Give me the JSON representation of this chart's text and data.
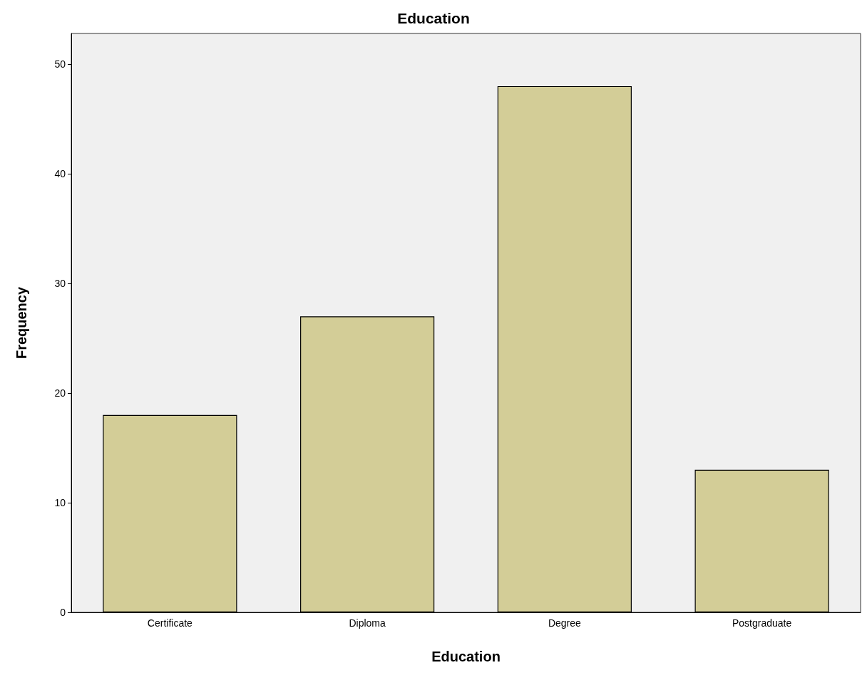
{
  "chart_data": {
    "type": "bar",
    "title": "Education",
    "xlabel": "Education",
    "ylabel": "Frequency",
    "categories": [
      "Certificate",
      "Diploma",
      "Degree",
      "Postgraduate"
    ],
    "values": [
      18,
      27,
      48,
      13
    ],
    "color": "#d3cd97",
    "ylim": [
      0,
      52.8
    ],
    "yticks": [
      0,
      10,
      20,
      30,
      40,
      50
    ],
    "grid": false
  }
}
